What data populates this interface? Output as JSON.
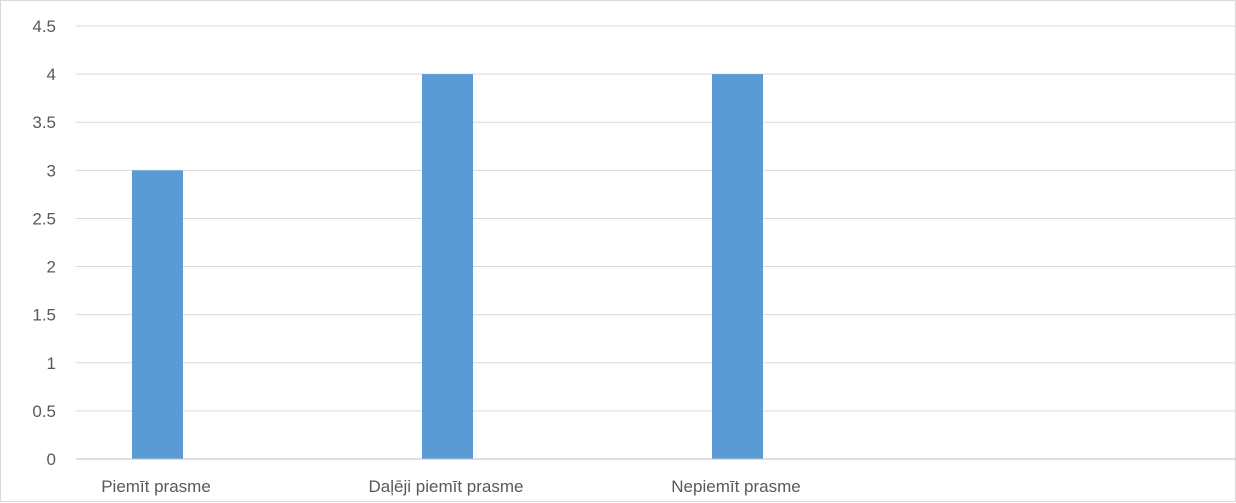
{
  "chart_data": {
    "type": "bar",
    "categories": [
      "Piemīt prasme",
      "Daļēji piemīt prasme",
      "Nepiemīt prasme",
      ""
    ],
    "values": [
      3,
      4,
      4,
      null
    ],
    "ylim": [
      0,
      4.5
    ],
    "yticks": [
      "0",
      "0.5",
      "1",
      "1.5",
      "2",
      "2.5",
      "3",
      "3.5",
      "4",
      "4.5"
    ],
    "grid": true,
    "legend": "none",
    "bar_color": "#5b9bd5",
    "grid_color": "#d9d9d9",
    "axis_color": "#bfbfbf",
    "text_color": "#595959"
  }
}
